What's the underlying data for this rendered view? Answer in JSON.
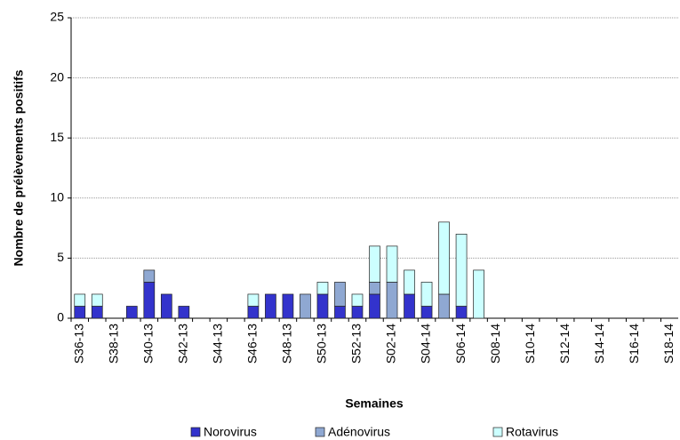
{
  "chart_data": {
    "type": "stacked_bar",
    "x_label": "Semaines",
    "y_label": "Nombre de prélèvements positifs",
    "categories": [
      "S36-13",
      null,
      "S38-13",
      null,
      "S40-13",
      null,
      "S42-13",
      null,
      "S44-13",
      null,
      "S46-13",
      null,
      "S48-13",
      null,
      "S50-13",
      null,
      "S52-13",
      null,
      "S02-14",
      null,
      "S04-14",
      null,
      "S06-14",
      null,
      "S08-14",
      null,
      "S10-14",
      null,
      "S12-14",
      null,
      "S14-14",
      null,
      "S16-14",
      null,
      "S18-14"
    ],
    "series": [
      {
        "name": "Norovirus",
        "color": "#3333cc",
        "values": [
          1,
          1,
          0,
          1,
          3,
          2,
          1,
          0,
          0,
          0,
          1,
          2,
          2,
          0,
          2,
          1,
          1,
          2,
          0,
          2,
          1,
          0,
          1,
          0,
          0,
          0,
          0,
          0,
          0,
          0,
          0,
          0,
          0,
          0,
          0
        ]
      },
      {
        "name": "Adénovirus",
        "color": "#8fa8d2",
        "values": [
          0,
          0,
          0,
          0,
          1,
          0,
          0,
          0,
          0,
          0,
          0,
          0,
          0,
          2,
          0,
          2,
          0,
          1,
          3,
          0,
          0,
          2,
          0,
          0,
          0,
          0,
          0,
          0,
          0,
          0,
          0,
          0,
          0,
          0,
          0
        ]
      },
      {
        "name": "Rotavirus",
        "color": "#ccffff",
        "values": [
          1,
          1,
          0,
          0,
          0,
          0,
          0,
          0,
          0,
          0,
          1,
          0,
          0,
          0,
          1,
          0,
          1,
          3,
          3,
          2,
          2,
          6,
          6,
          4,
          0,
          0,
          0,
          0,
          0,
          0,
          0,
          0,
          0,
          0,
          0
        ]
      }
    ],
    "ylim": [
      0,
      25
    ],
    "yticks": [
      0,
      5,
      10,
      15,
      20,
      25
    ],
    "grid": true,
    "legend": "bottom"
  }
}
